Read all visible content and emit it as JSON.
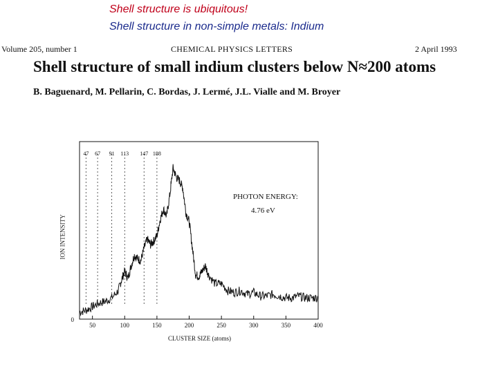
{
  "slide": {
    "title_line1": "Shell structure is ubiquitous!",
    "title_line2": "Shell structure in non-simple metals: Indium",
    "title_line1_color": "#c0001a",
    "title_line2_color": "#1a2a8c"
  },
  "paper": {
    "volume": "Volume 205, number 1",
    "journal": "CHEMICAL PHYSICS LETTERS",
    "date": "2 April 1993",
    "title": "Shell structure of small indium clusters below N≈200 atoms",
    "authors": "B. Baguenard, M. Pellarin, C. Bordas, J. Lermé, J.L. Vialle and M. Broyer"
  },
  "figure": {
    "annotation_line1": "PHOTON ENERGY:",
    "annotation_line2": "4.76 eV"
  },
  "chart_data": {
    "type": "line",
    "xlabel": "CLUSTER SIZE (atoms)",
    "ylabel": "ION INTENSITY",
    "xlim": [
      30,
      400
    ],
    "xticks": [
      50,
      100,
      150,
      200,
      250,
      300,
      350,
      400
    ],
    "ytick_labels": [
      "0"
    ],
    "grid": false,
    "magic_numbers": [
      {
        "label": "47",
        "x": 40
      },
      {
        "label": "67",
        "x": 58
      },
      {
        "label": "91",
        "x": 80
      },
      {
        "label": "113",
        "x": 100
      },
      {
        "label": "147",
        "x": 130
      },
      {
        "label": "188",
        "x": 150
      }
    ],
    "x": [
      30,
      40,
      50,
      60,
      70,
      80,
      90,
      95,
      100,
      105,
      110,
      115,
      120,
      125,
      130,
      135,
      140,
      145,
      150,
      155,
      160,
      165,
      170,
      175,
      180,
      185,
      190,
      195,
      200,
      205,
      210,
      215,
      220,
      225,
      230,
      240,
      250,
      260,
      270,
      280,
      290,
      300,
      310,
      320,
      330,
      340,
      350,
      360,
      370,
      380,
      390,
      400
    ],
    "y": [
      0.04,
      0.05,
      0.07,
      0.09,
      0.1,
      0.12,
      0.16,
      0.22,
      0.27,
      0.23,
      0.3,
      0.36,
      0.34,
      0.33,
      0.4,
      0.45,
      0.42,
      0.44,
      0.47,
      0.56,
      0.62,
      0.58,
      0.7,
      0.85,
      0.8,
      0.78,
      0.74,
      0.6,
      0.55,
      0.4,
      0.25,
      0.24,
      0.27,
      0.3,
      0.25,
      0.2,
      0.2,
      0.16,
      0.15,
      0.16,
      0.14,
      0.15,
      0.13,
      0.13,
      0.14,
      0.13,
      0.12,
      0.12,
      0.13,
      0.12,
      0.12,
      0.12
    ]
  }
}
